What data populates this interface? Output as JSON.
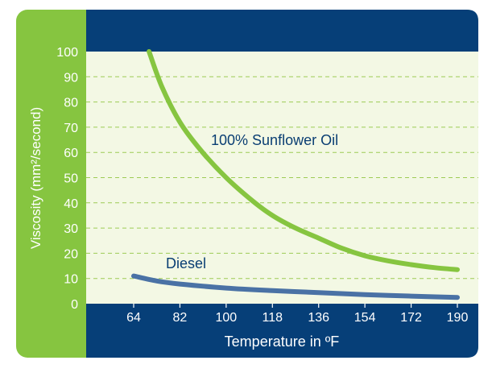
{
  "chart_data": {
    "type": "line",
    "title": "",
    "xlabel": "Temperature in ºF",
    "ylabel": "Viscosity (mm²/second)",
    "xlim": [
      64,
      190
    ],
    "ylim": [
      0,
      100
    ],
    "x_ticks": [
      64,
      82,
      100,
      118,
      136,
      154,
      172,
      190
    ],
    "y_ticks": [
      0,
      10,
      20,
      30,
      40,
      50,
      60,
      70,
      80,
      90,
      100
    ],
    "grid": true,
    "series": [
      {
        "name": "100% Sunflower Oil",
        "color": "#86c540",
        "x": [
          70,
          75,
          82,
          90,
          100,
          110,
          118,
          127,
          136,
          145,
          154,
          163,
          172,
          181,
          190
        ],
        "y": [
          100,
          86,
          72,
          61,
          50,
          41,
          35,
          30,
          26,
          22,
          19,
          17,
          15.5,
          14.3,
          13.5
        ]
      },
      {
        "name": "Diesel",
        "color": "#4a72a5",
        "x": [
          64,
          73,
          82,
          100,
          118,
          136,
          154,
          172,
          190
        ],
        "y": [
          11,
          9,
          7.8,
          6.2,
          5.2,
          4.4,
          3.6,
          3.0,
          2.5
        ]
      }
    ]
  },
  "colors": {
    "frame_green": "#86c540",
    "header_navy": "#063f78",
    "plot_background": "#f3f8e4",
    "grid_line": "#9dcb55",
    "axis_text": "#0a3e73"
  }
}
